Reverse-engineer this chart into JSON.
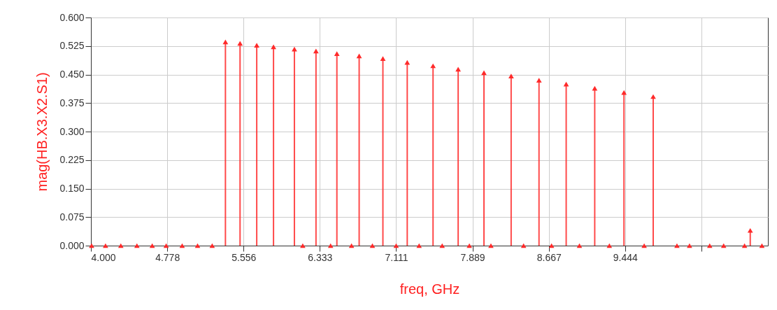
{
  "chart_data": {
    "type": "lollipop",
    "xlabel": "freq, GHz",
    "ylabel": "mag(HB.X3.X2.S1)",
    "x": [
      4.007,
      4.149,
      4.305,
      4.469,
      4.625,
      4.767,
      4.93,
      5.087,
      5.236,
      5.371,
      5.52,
      5.69,
      5.861,
      6.074,
      6.159,
      6.294,
      6.443,
      6.507,
      6.656,
      6.734,
      6.869,
      6.976,
      7.111,
      7.224,
      7.345,
      7.487,
      7.58,
      7.743,
      7.857,
      8.006,
      8.077,
      8.283,
      8.41,
      8.567,
      8.695,
      8.844,
      8.979,
      9.135,
      9.284,
      9.433,
      9.639,
      9.731,
      9.973,
      10.101,
      10.307,
      10.449,
      10.662,
      10.72,
      10.839
    ],
    "series": [
      {
        "color": "#ff2a2a",
        "values": [
          0,
          0,
          0,
          0,
          0,
          0,
          0,
          0,
          0,
          0.536,
          0.532,
          0.527,
          0.523,
          0.517,
          0,
          0.512,
          0,
          0.505,
          0,
          0.499,
          0,
          0.492,
          0,
          0.482,
          0,
          0.473,
          0,
          0.464,
          0,
          0.455,
          0,
          0.446,
          0,
          0.435,
          0,
          0.425,
          0,
          0.414,
          0,
          0.403,
          0,
          0.392,
          0,
          0,
          0,
          0,
          0,
          0.04,
          0
        ]
      }
    ],
    "xlim": [
      4.0,
      10.9
    ],
    "ylim": [
      0,
      0.6
    ],
    "xticks": [
      {
        "value": 4.0,
        "label": "4.000"
      },
      {
        "value": 4.778,
        "label": "4.778"
      },
      {
        "value": 5.556,
        "label": "5.556"
      },
      {
        "value": 6.333,
        "label": "6.333"
      },
      {
        "value": 7.111,
        "label": "7.111"
      },
      {
        "value": 7.889,
        "label": "7.889"
      },
      {
        "value": 8.667,
        "label": "8.667"
      },
      {
        "value": 9.444,
        "label": "9.444"
      },
      {
        "value": 10.222,
        "label": null
      }
    ],
    "yticks": [
      {
        "value": 0,
        "label": "0.000"
      },
      {
        "value": 0.075,
        "label": "0.075"
      },
      {
        "value": 0.15,
        "label": "0.150"
      },
      {
        "value": 0.225,
        "label": "0.225"
      },
      {
        "value": 0.3,
        "label": "0.300"
      },
      {
        "value": 0.375,
        "label": "0.375"
      },
      {
        "value": 0.45,
        "label": "0.450"
      },
      {
        "value": 0.525,
        "label": "0.525"
      },
      {
        "value": 0.6,
        "label": "0.600"
      }
    ],
    "grid": true,
    "marker": "triangle"
  }
}
